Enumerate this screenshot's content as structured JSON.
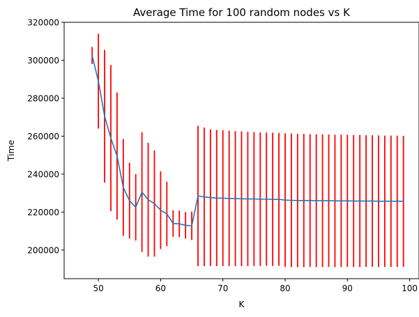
{
  "chart_data": {
    "type": "line",
    "title": "Average Time for 100 random nodes vs K",
    "xlabel": "K",
    "ylabel": "Time",
    "xlim": [
      44.5,
      101.5
    ],
    "ylim": [
      184900,
      320000
    ],
    "xticks": [
      50,
      60,
      70,
      80,
      90,
      100
    ],
    "xtick_labels": [
      "50",
      "60",
      "70",
      "80",
      "90",
      "100"
    ],
    "yticks": [
      200000,
      220000,
      240000,
      260000,
      280000,
      300000,
      320000
    ],
    "ytick_labels": [
      "200000",
      "220000",
      "240000",
      "260000",
      "280000",
      "300000",
      "320000"
    ],
    "grid": false,
    "series": [
      {
        "color": "#1f77b4",
        "errorbar_color": "#ff0000",
        "x": [
          49,
          50,
          51,
          52,
          53,
          54,
          55,
          56,
          57,
          58,
          59,
          60,
          61,
          62,
          63,
          64,
          65,
          66,
          67,
          68,
          69,
          70,
          71,
          72,
          73,
          74,
          75,
          76,
          77,
          78,
          79,
          80,
          81,
          82,
          83,
          84,
          85,
          86,
          87,
          88,
          89,
          90,
          91,
          92,
          93,
          94,
          95,
          96,
          97,
          98,
          99
        ],
        "y": [
          302500,
          289000,
          270500,
          259000,
          249500,
          233000,
          226000,
          222500,
          230500,
          226500,
          224500,
          221000,
          219000,
          214000,
          213800,
          213000,
          212800,
          228500,
          228000,
          227600,
          227400,
          227300,
          227200,
          227100,
          227000,
          226900,
          226900,
          226800,
          226800,
          226700,
          226700,
          226300,
          226200,
          226100,
          226100,
          226100,
          226000,
          226000,
          226000,
          225900,
          225900,
          225900,
          225800,
          225800,
          225800,
          225800,
          225700,
          225700,
          225700,
          225700,
          225700
        ],
        "err": [
          4500,
          25000,
          35000,
          38500,
          33500,
          25500,
          20000,
          17500,
          31500,
          30000,
          28000,
          20500,
          17000,
          7000,
          7000,
          7000,
          7500,
          37000,
          36500,
          36000,
          35900,
          35800,
          35700,
          35600,
          35500,
          35400,
          35300,
          35200,
          35100,
          35100,
          35000,
          35200,
          35200,
          35100,
          35100,
          35000,
          35000,
          35000,
          34900,
          34900,
          34900,
          34800,
          34800,
          34800,
          34700,
          34700,
          34700,
          34600,
          34600,
          34600,
          34500
        ]
      }
    ]
  }
}
